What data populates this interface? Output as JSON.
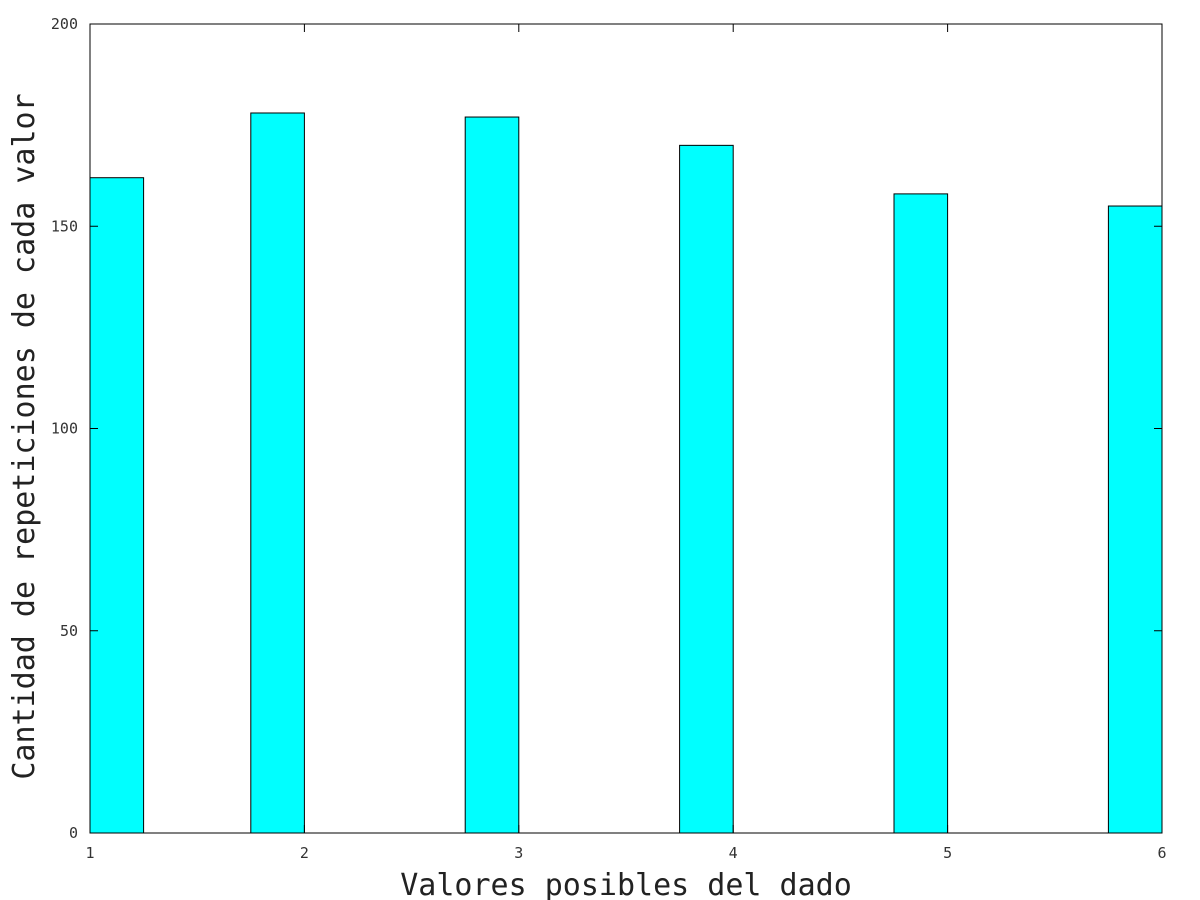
{
  "chart_data": {
    "type": "bar",
    "categories": [
      "1",
      "2",
      "3",
      "4",
      "5",
      "6"
    ],
    "x": [
      1,
      2,
      3,
      4,
      5,
      6
    ],
    "values": [
      162,
      178,
      177,
      170,
      158,
      155
    ],
    "title": "",
    "xlabel": "Valores posibles del dado",
    "ylabel": "Cantidad de repeticiones de cada valor",
    "xlim": [
      1,
      6
    ],
    "ylim": [
      0,
      200
    ],
    "yticks": [
      0,
      50,
      100,
      150,
      200
    ],
    "xticks": [
      1,
      2,
      3,
      4,
      5,
      6
    ],
    "grid": false,
    "legend": "none",
    "bar_color": "#00ffff",
    "edge_color": "#000000"
  }
}
